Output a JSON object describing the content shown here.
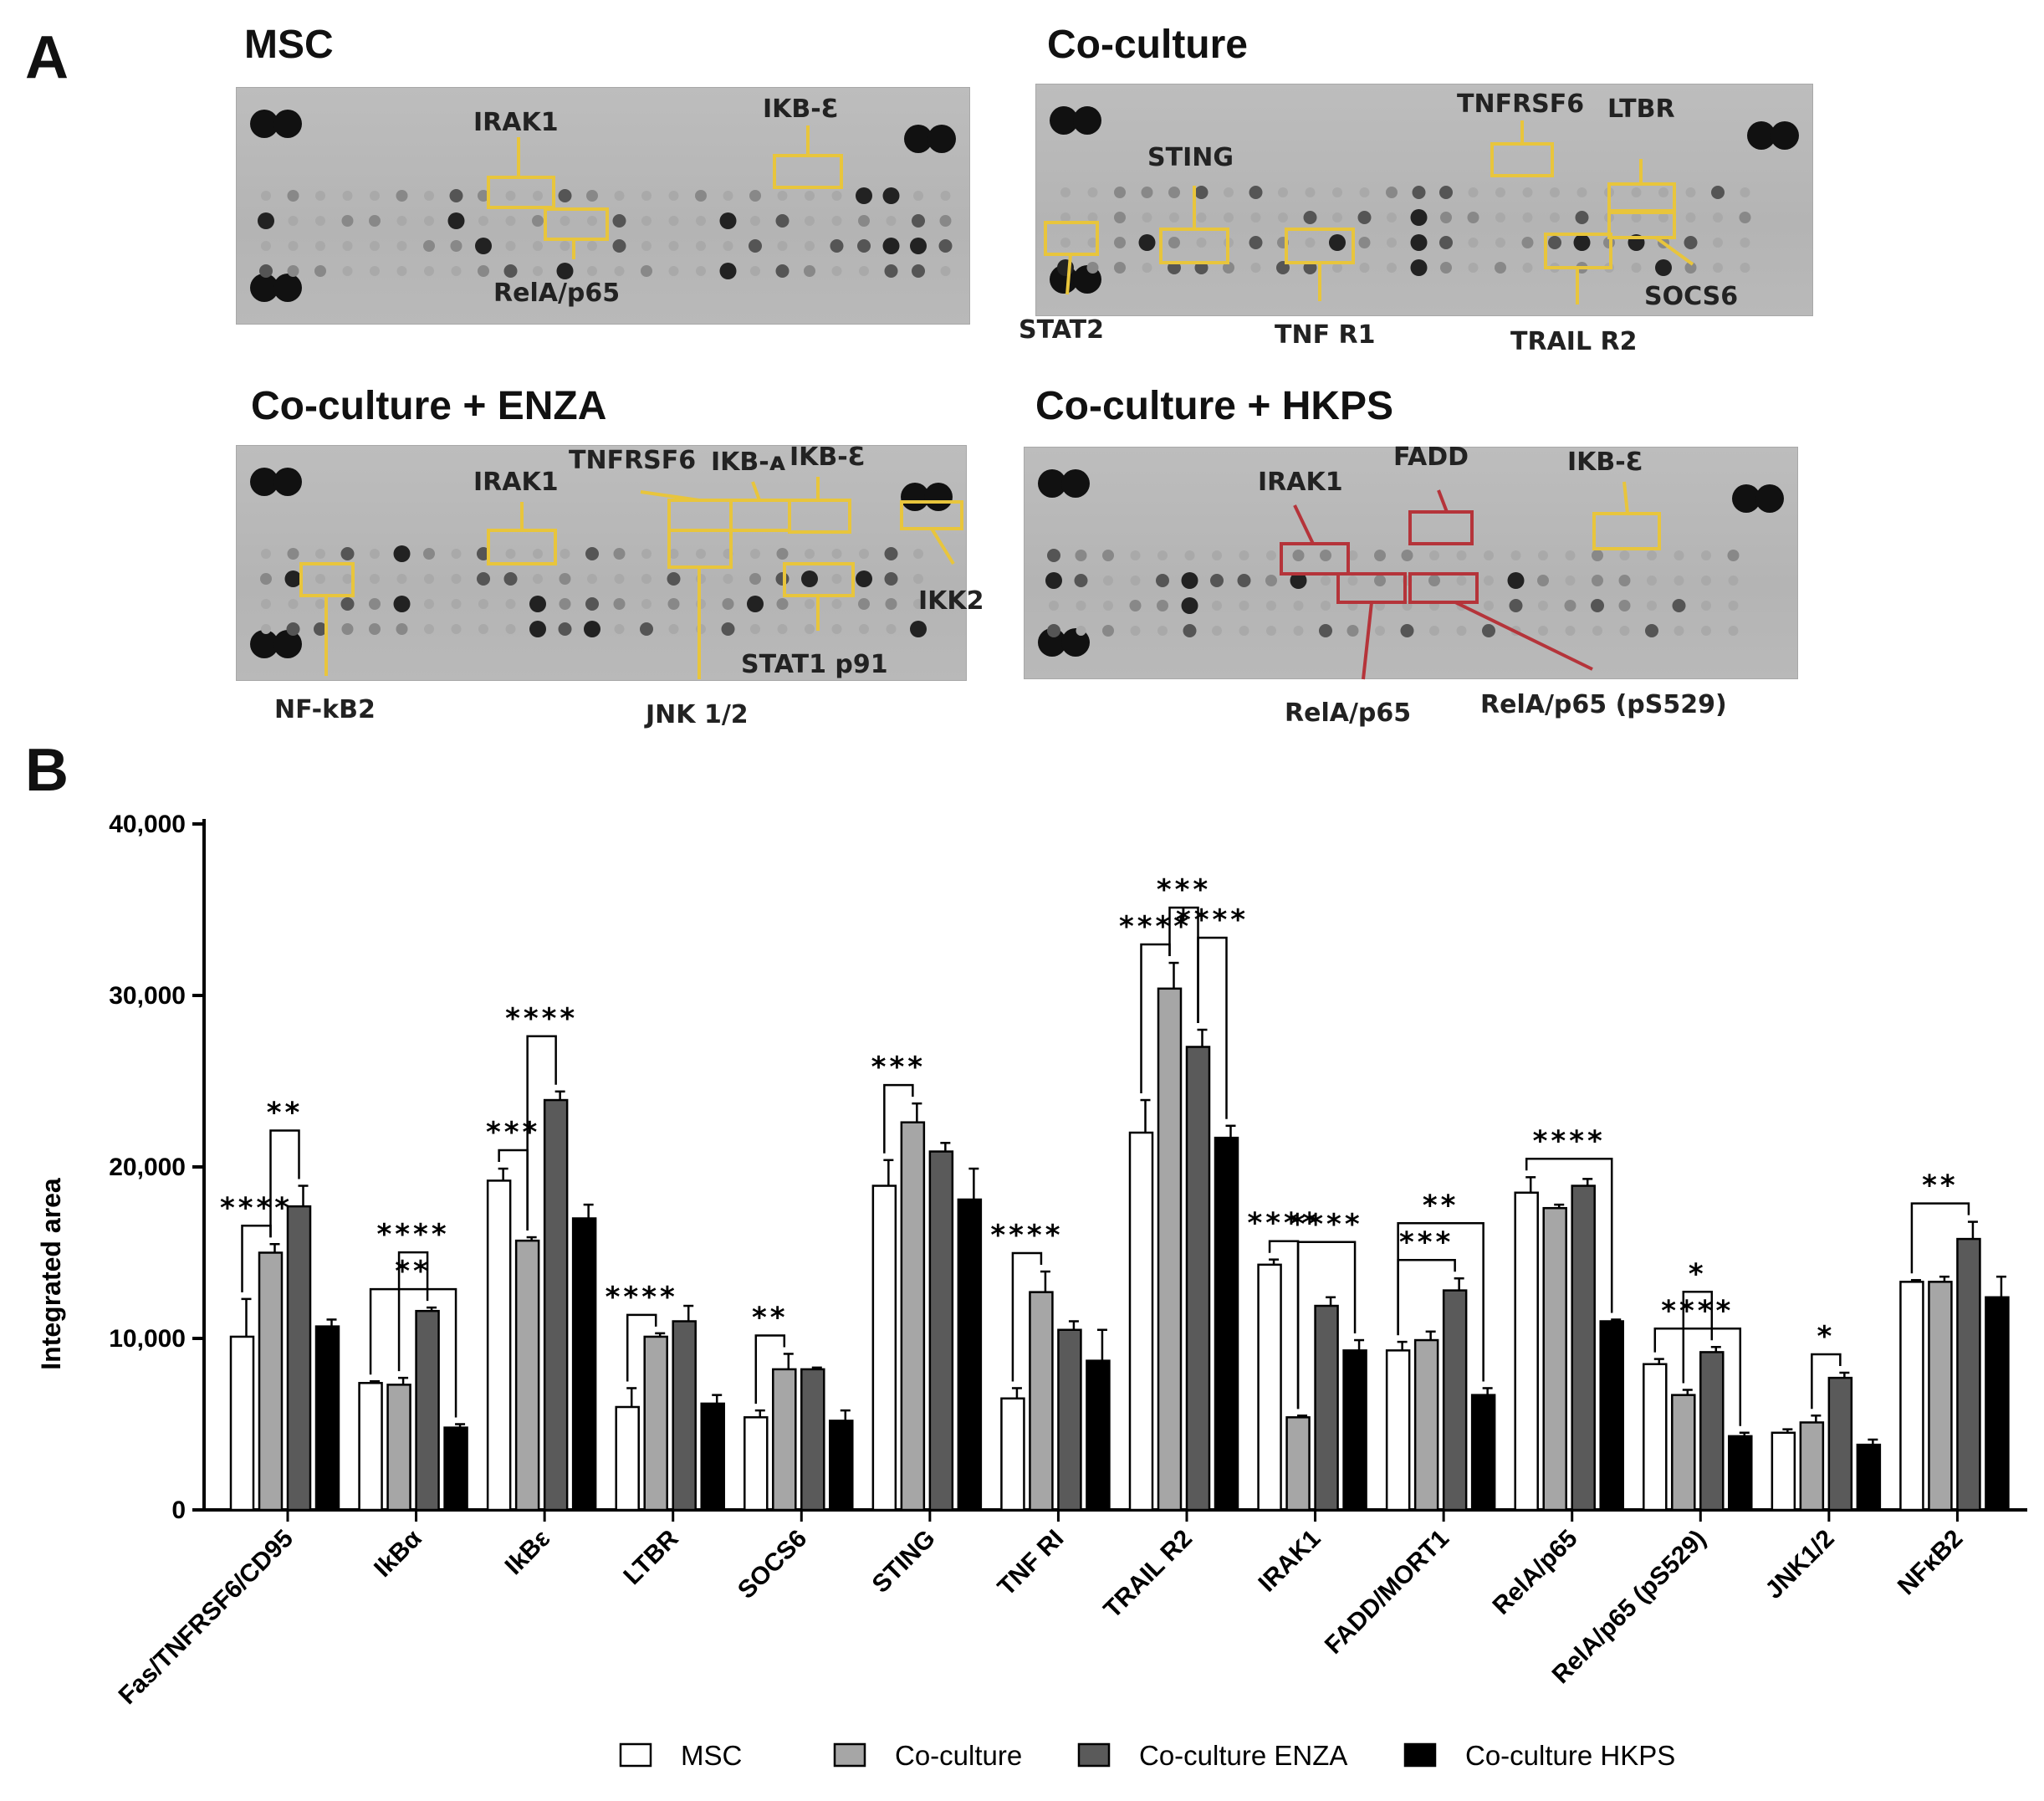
{
  "panel_a": {
    "letter": "A",
    "blots": [
      {
        "title": "MSC",
        "annotations": [
          "IRAK1",
          "IKB-Ɛ",
          "RelA/p65"
        ]
      },
      {
        "title": "Co-culture",
        "annotations": [
          "STING",
          "TNFRSF6",
          "LTBR",
          "STAT2",
          "TNF R1",
          "TRAIL R2",
          "SOCS6"
        ]
      },
      {
        "title": "Co-culture + ENZA",
        "annotations": [
          "IRAK1",
          "TNFRSF6",
          "IKB-ᴀ",
          "IKB-Ɛ",
          "IKK2",
          "NF-kB2",
          "STAT1 p91",
          "JNK 1/2"
        ]
      },
      {
        "title": "Co-culture + HKPS",
        "annotations": [
          "FADD",
          "IRAK1",
          "IKB-Ɛ",
          "RelA/p65",
          "RelA/p65 (pS529)"
        ]
      }
    ],
    "colors": {
      "highlight_yellow": "#e8c53c",
      "highlight_red": "#b5343a",
      "blot_bg": "#b9b9b9",
      "spot": "#1a1a1a"
    }
  },
  "panel_b": {
    "letter": "B"
  },
  "chart_data": {
    "type": "bar",
    "title": "",
    "xlabel": "",
    "ylabel": "Integrated area",
    "ylim": [
      0,
      40000
    ],
    "yticks": [
      0,
      10000,
      20000,
      30000,
      40000
    ],
    "ytick_labels": [
      "0",
      "10,000",
      "20,000",
      "30,000",
      "40,000"
    ],
    "categories": [
      "Fas/TNFRSF6/CD95",
      "IkBα",
      "IkBε",
      "LTBR",
      "SOCS6",
      "STING",
      "TNF RI",
      "TRAIL R2",
      "IRAK1",
      "FADD/MORT1",
      "RelA/p65",
      "RelA/p65 (pS529)",
      "JNK1/2",
      "NFκB2"
    ],
    "series": [
      {
        "name": "MSC",
        "color": "#ffffff",
        "values": [
          10100,
          7400,
          19200,
          6000,
          5400,
          18900,
          6500,
          22000,
          14300,
          9300,
          18500,
          8500,
          4500,
          13300
        ],
        "errors": [
          2200,
          100,
          700,
          1100,
          400,
          1500,
          600,
          1900,
          300,
          500,
          900,
          300,
          200,
          100
        ]
      },
      {
        "name": "Co-culture",
        "color": "#a6a6a6",
        "values": [
          15000,
          7300,
          15700,
          10100,
          8200,
          22600,
          12700,
          30400,
          5400,
          9900,
          17600,
          6700,
          5100,
          13300
        ],
        "errors": [
          500,
          400,
          200,
          200,
          900,
          1100,
          1200,
          1500,
          100,
          500,
          200,
          300,
          400,
          300
        ]
      },
      {
        "name": "Co-culture ENZA",
        "color": "#5a5a5a",
        "values": [
          17700,
          11600,
          23900,
          11000,
          8200,
          20900,
          10500,
          27000,
          11900,
          12800,
          18900,
          9200,
          7700,
          15800
        ],
        "errors": [
          1200,
          200,
          500,
          900,
          100,
          500,
          500,
          1000,
          500,
          700,
          400,
          300,
          300,
          1000
        ]
      },
      {
        "name": "Co-culture HKPS",
        "color": "#000000",
        "values": [
          10700,
          4800,
          17000,
          6200,
          5200,
          18100,
          8700,
          21700,
          9300,
          6700,
          11000,
          4300,
          3800,
          12400
        ],
        "errors": [
          400,
          200,
          800,
          500,
          600,
          1800,
          1800,
          700,
          600,
          400,
          100,
          200,
          300,
          1200
        ]
      }
    ],
    "significance": [
      {
        "category": "Fas/TNFRSF6/CD95",
        "from": 0,
        "to": 1,
        "label": "****"
      },
      {
        "category": "Fas/TNFRSF6/CD95",
        "from": 1,
        "to": 2,
        "label": "**"
      },
      {
        "category": "IkBα",
        "from": 0,
        "to": 3,
        "label": "**"
      },
      {
        "category": "IkBα",
        "from": 1,
        "to": 2,
        "label": "****"
      },
      {
        "category": "IkBε",
        "from": 0,
        "to": 1,
        "label": "***"
      },
      {
        "category": "IkBε",
        "from": 1,
        "to": 2,
        "label": "****"
      },
      {
        "category": "LTBR",
        "from": 0,
        "to": 1,
        "label": "****"
      },
      {
        "category": "SOCS6",
        "from": 0,
        "to": 1,
        "label": "**"
      },
      {
        "category": "STING",
        "from": 0,
        "to": 1,
        "label": "***"
      },
      {
        "category": "TNF RI",
        "from": 0,
        "to": 1,
        "label": "****"
      },
      {
        "category": "TRAIL R2",
        "from": 0,
        "to": 1,
        "label": "****"
      },
      {
        "category": "TRAIL R2",
        "from": 1,
        "to": 2,
        "label": "***"
      },
      {
        "category": "TRAIL R2",
        "from": 2,
        "to": 3,
        "label": "****"
      },
      {
        "category": "IRAK1",
        "from": 0,
        "to": 1,
        "label": "****"
      },
      {
        "category": "IRAK1",
        "from": 1,
        "to": 3,
        "label": "****"
      },
      {
        "category": "FADD/MORT1",
        "from": 0,
        "to": 2,
        "label": "***"
      },
      {
        "category": "FADD/MORT1",
        "from": 0,
        "to": 3,
        "label": "**"
      },
      {
        "category": "RelA/p65",
        "from": 0,
        "to": 3,
        "label": "****"
      },
      {
        "category": "RelA/p65 (pS529)",
        "from": 0,
        "to": 3,
        "label": "****"
      },
      {
        "category": "RelA/p65 (pS529)",
        "from": 1,
        "to": 2,
        "label": "*"
      },
      {
        "category": "JNK1/2",
        "from": 1,
        "to": 2,
        "label": "*"
      },
      {
        "category": "NFκB2",
        "from": 0,
        "to": 2,
        "label": "**"
      }
    ],
    "legend": [
      "MSC",
      "Co-culture",
      "Co-culture ENZA",
      "Co-culture HKPS"
    ],
    "legend_position": "bottom"
  }
}
